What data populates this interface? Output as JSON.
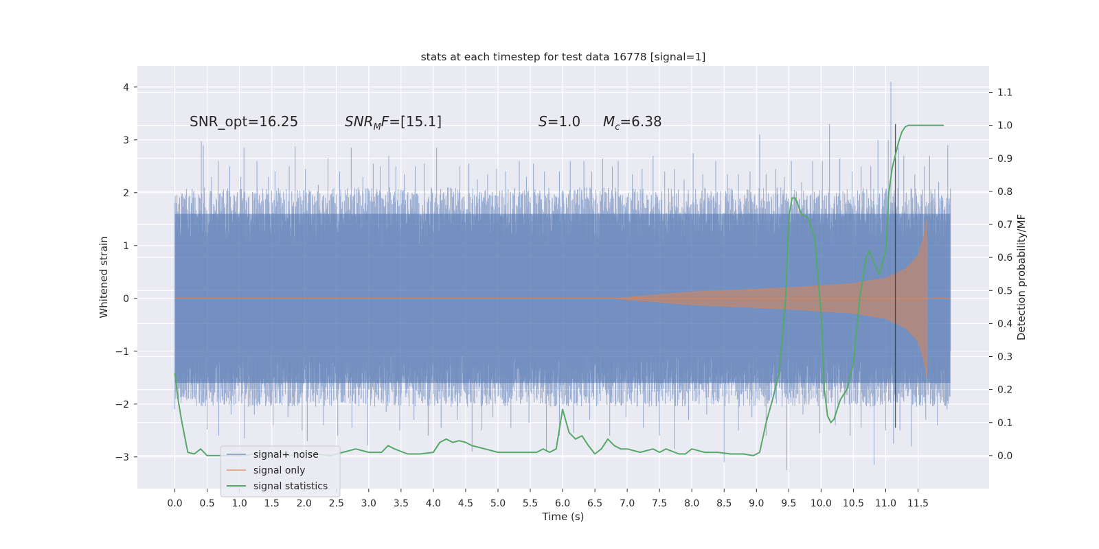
{
  "chart_data": {
    "type": "line",
    "title": "stats at each timestep for test data 16778 [signal=1]",
    "xlabel": "Time (s)",
    "ylabel": "Whitened strain",
    "y2label": "Detection probability/MF",
    "xlim": [
      -0.58,
      12.6
    ],
    "ylim": [
      -3.6,
      4.4
    ],
    "y2lim": [
      -0.1,
      1.18
    ],
    "x_ticks": [
      "0.0",
      "0.5",
      "1.0",
      "1.5",
      "2.0",
      "2.5",
      "3.0",
      "3.5",
      "4.0",
      "4.5",
      "5.0",
      "5.5",
      "6.0",
      "6.5",
      "7.0",
      "7.5",
      "8.0",
      "8.5",
      "9.0",
      "9.5",
      "10.0",
      "10.5",
      "11.0",
      "11.5"
    ],
    "y_ticks": [
      "−3",
      "−2",
      "−1",
      "0",
      "1",
      "2",
      "3",
      "4"
    ],
    "y2_ticks": [
      "0.0",
      "0.1",
      "0.2",
      "0.3",
      "0.4",
      "0.5",
      "0.6",
      "0.7",
      "0.8",
      "0.9",
      "1.0",
      "1.1"
    ],
    "grid": true,
    "legend_position": "lower-left",
    "annotations": {
      "snr_opt": "SNR_opt=16.25",
      "snr_mf_main": "SNR",
      "snr_mf_sub": "M",
      "snr_mf_mid": "F",
      "snr_mf_val": "=[15.1]",
      "s_sym": "S",
      "s_val": "=1.0",
      "mc_sym": "M",
      "mc_sub": "c",
      "mc_val": "=6.38"
    },
    "vertical_line_x": 11.15,
    "series": [
      {
        "name": "signal+ noise",
        "color": "#4c72b0",
        "axis": "left",
        "x_range": [
          0.0,
          12.0
        ],
        "envelope_upper": 1.6,
        "envelope_lower": -1.6,
        "peaks": [
          [
            0.41,
            2.97
          ],
          [
            0.44,
            2.9
          ],
          [
            0.57,
            2.3
          ],
          [
            0.67,
            2.6
          ],
          [
            0.85,
            2.5
          ],
          [
            1.02,
            2.3
          ],
          [
            1.07,
            2.85
          ],
          [
            1.27,
            2.6
          ],
          [
            1.45,
            2.3
          ],
          [
            1.55,
            2.4
          ],
          [
            1.77,
            2.5
          ],
          [
            1.86,
            2.88
          ],
          [
            2.02,
            2.45
          ],
          [
            2.22,
            2.15
          ],
          [
            2.37,
            2.65
          ],
          [
            2.55,
            2.4
          ],
          [
            2.73,
            2.85
          ],
          [
            2.91,
            2.3
          ],
          [
            3.07,
            2.55
          ],
          [
            3.18,
            2.5
          ],
          [
            3.31,
            2.7
          ],
          [
            3.42,
            2.5
          ],
          [
            3.55,
            2.35
          ],
          [
            3.72,
            2.5
          ],
          [
            3.86,
            2.55
          ],
          [
            4.05,
            2.85
          ],
          [
            4.22,
            2.1
          ],
          [
            4.41,
            2.5
          ],
          [
            4.55,
            2.55
          ],
          [
            4.68,
            2.25
          ],
          [
            4.84,
            2.35
          ],
          [
            4.98,
            2.45
          ],
          [
            5.12,
            2.4
          ],
          [
            5.33,
            2.6
          ],
          [
            5.44,
            2.3
          ],
          [
            5.55,
            2.55
          ],
          [
            5.72,
            2.4
          ],
          [
            5.95,
            2.4
          ],
          [
            6.12,
            2.6
          ],
          [
            6.33,
            2.6
          ],
          [
            6.45,
            2.4
          ],
          [
            6.62,
            2.65
          ],
          [
            6.77,
            2.5
          ],
          [
            6.86,
            2.6
          ],
          [
            7.08,
            2.35
          ],
          [
            7.23,
            2.45
          ],
          [
            7.4,
            2.7
          ],
          [
            7.58,
            2.4
          ],
          [
            7.73,
            2.45
          ],
          [
            7.88,
            2.25
          ],
          [
            8.02,
            2.75
          ],
          [
            8.17,
            2.35
          ],
          [
            8.37,
            2.6
          ],
          [
            8.55,
            2.35
          ],
          [
            8.72,
            2.35
          ],
          [
            8.9,
            2.4
          ],
          [
            9.05,
            3.1
          ],
          [
            9.15,
            2.35
          ],
          [
            9.3,
            2.45
          ],
          [
            9.43,
            2.3
          ],
          [
            9.54,
            2.6
          ],
          [
            9.7,
            2.2
          ],
          [
            9.87,
            2.6
          ],
          [
            10.02,
            2.6
          ],
          [
            10.13,
            3.3
          ],
          [
            10.29,
            2.65
          ],
          [
            10.48,
            2.4
          ],
          [
            10.62,
            2.5
          ],
          [
            10.77,
            2.5
          ],
          [
            10.88,
            3.0
          ],
          [
            11.04,
            3.0
          ],
          [
            11.08,
            4.1
          ],
          [
            11.2,
            2.85
          ],
          [
            11.28,
            2.7
          ],
          [
            11.45,
            2.35
          ],
          [
            11.6,
            2.5
          ],
          [
            11.68,
            2.7
          ],
          [
            11.82,
            2.2
          ],
          [
            11.96,
            2.9
          ]
        ],
        "troughs": [
          [
            0.0,
            -2.1
          ],
          [
            0.22,
            -1.55
          ],
          [
            0.4,
            -1.75
          ],
          [
            0.5,
            -2.48
          ],
          [
            0.68,
            -2.6
          ],
          [
            0.87,
            -2.2
          ],
          [
            1.08,
            -2.65
          ],
          [
            1.23,
            -2.2
          ],
          [
            1.52,
            -2.4
          ],
          [
            1.75,
            -2.25
          ],
          [
            1.97,
            -2.5
          ],
          [
            2.05,
            -2.7
          ],
          [
            2.3,
            -2.4
          ],
          [
            2.52,
            -2.6
          ],
          [
            2.74,
            -2.45
          ],
          [
            2.98,
            -2.78
          ],
          [
            3.27,
            -2.15
          ],
          [
            3.48,
            -2.5
          ],
          [
            3.7,
            -2.3
          ],
          [
            3.92,
            -2.6
          ],
          [
            4.12,
            -2.45
          ],
          [
            4.37,
            -2.3
          ],
          [
            4.6,
            -2.9
          ],
          [
            4.75,
            -2.5
          ],
          [
            4.92,
            -2.25
          ],
          [
            5.2,
            -2.45
          ],
          [
            5.48,
            -2.35
          ],
          [
            5.75,
            -2.9
          ],
          [
            5.95,
            -2.6
          ],
          [
            6.17,
            -2.55
          ],
          [
            6.42,
            -2.3
          ],
          [
            6.73,
            -2.6
          ],
          [
            6.98,
            -2.25
          ],
          [
            7.25,
            -2.45
          ],
          [
            7.5,
            -2.6
          ],
          [
            7.73,
            -2.85
          ],
          [
            7.95,
            -2.3
          ],
          [
            8.23,
            -2.2
          ],
          [
            8.5,
            -3.1
          ],
          [
            8.72,
            -2.5
          ],
          [
            8.93,
            -2.25
          ],
          [
            9.15,
            -2.6
          ],
          [
            9.47,
            -3.25
          ],
          [
            9.72,
            -2.2
          ],
          [
            9.98,
            -2.55
          ],
          [
            10.22,
            -2.4
          ],
          [
            10.45,
            -2.6
          ],
          [
            10.62,
            -2.45
          ],
          [
            10.82,
            -3.15
          ],
          [
            11.0,
            -2.5
          ],
          [
            11.12,
            -2.75
          ],
          [
            11.22,
            -2.5
          ],
          [
            11.4,
            -2.8
          ],
          [
            11.62,
            -2.3
          ],
          [
            11.8,
            -2.4
          ],
          [
            11.95,
            -2.1
          ]
        ]
      },
      {
        "name": "signal only",
        "color": "#dd8452",
        "axis": "left",
        "x_range": [
          0.0,
          12.0
        ],
        "onset_x": 6.8,
        "merger_x": 11.65,
        "amplitude_knots": [
          [
            6.8,
            0.0
          ],
          [
            8.0,
            0.12
          ],
          [
            9.5,
            0.2
          ],
          [
            10.5,
            0.28
          ],
          [
            11.0,
            0.38
          ],
          [
            11.3,
            0.55
          ],
          [
            11.5,
            0.8
          ],
          [
            11.6,
            1.2
          ],
          [
            11.65,
            1.6
          ]
        ]
      },
      {
        "name": "signal statistics",
        "color": "#55a868",
        "axis": "right",
        "x": [
          0.0,
          0.05,
          0.1,
          0.15,
          0.2,
          0.3,
          0.4,
          0.5,
          0.7,
          0.9,
          1.0,
          1.1,
          1.2,
          1.3,
          1.4,
          1.5,
          1.6,
          1.7,
          1.8,
          1.9,
          2.0,
          2.2,
          2.4,
          2.6,
          2.8,
          3.0,
          3.2,
          3.3,
          3.4,
          3.6,
          3.8,
          4.0,
          4.1,
          4.2,
          4.3,
          4.4,
          4.5,
          4.6,
          4.8,
          5.0,
          5.2,
          5.4,
          5.6,
          5.7,
          5.8,
          5.9,
          6.0,
          6.1,
          6.2,
          6.3,
          6.4,
          6.5,
          6.6,
          6.7,
          6.8,
          6.9,
          7.0,
          7.2,
          7.4,
          7.5,
          7.6,
          7.8,
          7.9,
          8.0,
          8.2,
          8.4,
          8.6,
          8.8,
          8.95,
          9.05,
          9.15,
          9.25,
          9.35,
          9.45,
          9.5,
          9.55,
          9.6,
          9.7,
          9.8,
          9.9,
          10.0,
          10.05,
          10.1,
          10.15,
          10.2,
          10.3,
          10.4,
          10.5,
          10.6,
          10.7,
          10.75,
          10.8,
          10.85,
          10.9,
          11.0,
          11.05,
          11.1,
          11.15,
          11.2,
          11.25,
          11.3,
          11.35,
          11.4,
          11.5,
          11.7,
          11.9
        ],
        "values": [
          0.25,
          0.17,
          0.11,
          0.06,
          0.01,
          0.005,
          0.02,
          0.0,
          0.0,
          0.0,
          0.0,
          0.0,
          0.005,
          0.01,
          0.0,
          0.0,
          0.01,
          0.005,
          0.0,
          0.005,
          0.01,
          0.005,
          0.0,
          0.01,
          0.02,
          0.01,
          0.01,
          0.03,
          0.02,
          0.005,
          0.005,
          0.01,
          0.04,
          0.05,
          0.04,
          0.045,
          0.04,
          0.03,
          0.02,
          0.01,
          0.01,
          0.01,
          0.01,
          0.02,
          0.01,
          0.02,
          0.14,
          0.07,
          0.05,
          0.06,
          0.03,
          0.005,
          0.02,
          0.05,
          0.03,
          0.02,
          0.02,
          0.01,
          0.02,
          0.01,
          0.02,
          0.005,
          0.005,
          0.02,
          0.01,
          0.01,
          0.005,
          0.005,
          0.0,
          0.01,
          0.1,
          0.17,
          0.25,
          0.47,
          0.72,
          0.78,
          0.78,
          0.73,
          0.72,
          0.66,
          0.43,
          0.2,
          0.12,
          0.1,
          0.11,
          0.17,
          0.2,
          0.28,
          0.48,
          0.6,
          0.62,
          0.59,
          0.57,
          0.55,
          0.62,
          0.8,
          0.87,
          0.91,
          0.95,
          0.98,
          0.995,
          1.0,
          1.0,
          1.0,
          1.0,
          1.0
        ]
      }
    ]
  }
}
